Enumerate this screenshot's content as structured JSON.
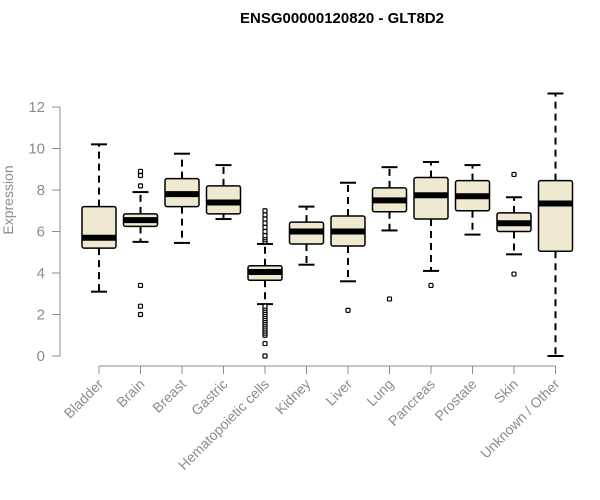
{
  "chart_data": {
    "type": "box",
    "title": "ENSG00000120820 - GLT8D2",
    "ylabel": "Expression",
    "xlabel": "",
    "ylim": [
      0,
      12.5
    ],
    "yticks": [
      0,
      2,
      4,
      6,
      8,
      10,
      12
    ],
    "grid": false,
    "box_fill": "#efe9d2",
    "categories": [
      "Bladder",
      "Brain",
      "Breast",
      "Gastric",
      "Hematopoietic cells",
      "Kidney",
      "Liver",
      "Lung",
      "Pancreas",
      "Prostate",
      "Skin",
      "Unknown / Other"
    ],
    "boxes": [
      {
        "q1": 5.2,
        "median": 5.7,
        "q3": 7.2,
        "whisker_low": 3.1,
        "whisker_high": 10.2,
        "outliers": []
      },
      {
        "q1": 6.25,
        "median": 6.55,
        "q3": 6.85,
        "whisker_low": 5.5,
        "whisker_high": 7.9,
        "outliers": [
          2.0,
          2.4,
          3.4,
          8.2,
          8.7,
          8.9
        ]
      },
      {
        "q1": 7.2,
        "median": 7.8,
        "q3": 8.55,
        "whisker_low": 5.45,
        "whisker_high": 9.75,
        "outliers": []
      },
      {
        "q1": 6.85,
        "median": 7.4,
        "q3": 8.2,
        "whisker_low": 6.6,
        "whisker_high": 9.2,
        "outliers": []
      },
      {
        "q1": 3.65,
        "median": 4.05,
        "q3": 4.35,
        "whisker_low": 2.5,
        "whisker_high": 5.4,
        "outliers": [
          0.0,
          0.6,
          1.0,
          1.1,
          1.2,
          1.3,
          1.4,
          1.5,
          1.6,
          1.7,
          1.8,
          1.9,
          2.0,
          2.1,
          2.2,
          2.3,
          2.4,
          5.5,
          5.6,
          5.7,
          5.8,
          6.0,
          6.2,
          6.4,
          6.6,
          6.8,
          7.0
        ]
      },
      {
        "q1": 5.4,
        "median": 6.0,
        "q3": 6.45,
        "whisker_low": 4.4,
        "whisker_high": 7.2,
        "outliers": []
      },
      {
        "q1": 5.3,
        "median": 6.0,
        "q3": 6.75,
        "whisker_low": 3.6,
        "whisker_high": 8.35,
        "outliers": [
          2.2
        ]
      },
      {
        "q1": 6.95,
        "median": 7.5,
        "q3": 8.1,
        "whisker_low": 6.05,
        "whisker_high": 9.1,
        "outliers": [
          2.75
        ]
      },
      {
        "q1": 6.6,
        "median": 7.75,
        "q3": 8.6,
        "whisker_low": 4.1,
        "whisker_high": 9.35,
        "outliers": [
          3.4
        ]
      },
      {
        "q1": 7.0,
        "median": 7.7,
        "q3": 8.45,
        "whisker_low": 5.85,
        "whisker_high": 9.2,
        "outliers": []
      },
      {
        "q1": 6.0,
        "median": 6.4,
        "q3": 6.9,
        "whisker_low": 4.9,
        "whisker_high": 7.65,
        "outliers": [
          3.95,
          8.75
        ]
      },
      {
        "q1": 5.05,
        "median": 7.35,
        "q3": 8.45,
        "whisker_low": 0.0,
        "whisker_high": 12.65,
        "outliers": []
      }
    ]
  }
}
